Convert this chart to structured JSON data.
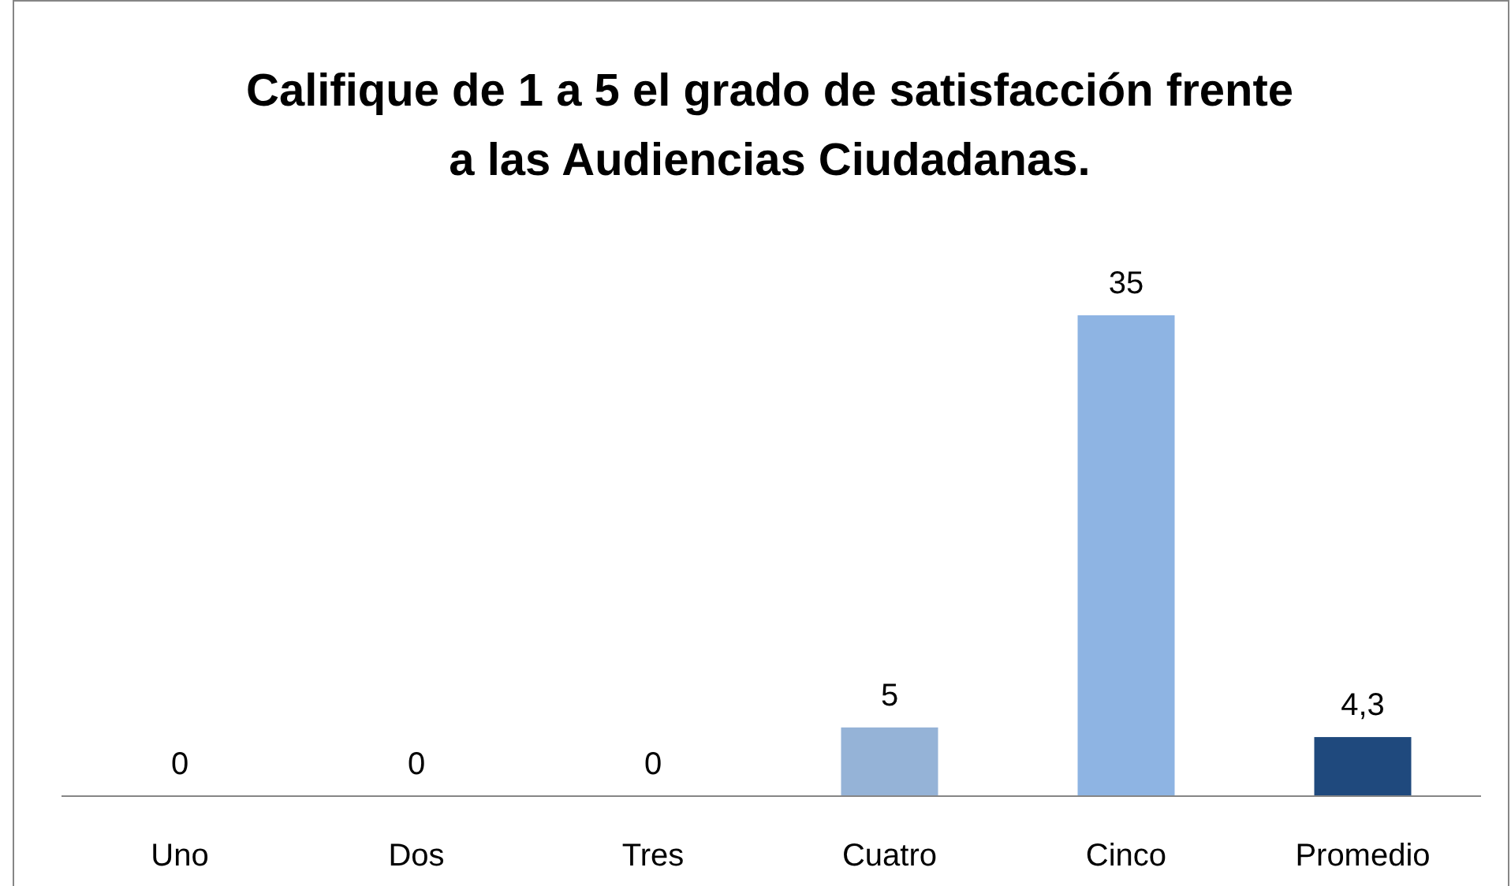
{
  "chart_data": {
    "type": "bar",
    "title": "Califique de 1 a 5 el grado de satisfacción frente a las Audiencias Ciudadanas.",
    "categories": [
      "Uno",
      "Dos",
      "Tres",
      "Cuatro",
      "Cinco",
      "Promedio"
    ],
    "values": [
      0,
      0,
      0,
      5,
      35,
      4.3
    ],
    "colors": [
      "#95b3d7",
      "#95b3d7",
      "#95b3d7",
      "#95b3d7",
      "#8eb4e3",
      "#1f497d"
    ],
    "value_labels": [
      "0",
      "0",
      "0",
      "5",
      "35",
      "4,3"
    ]
  }
}
